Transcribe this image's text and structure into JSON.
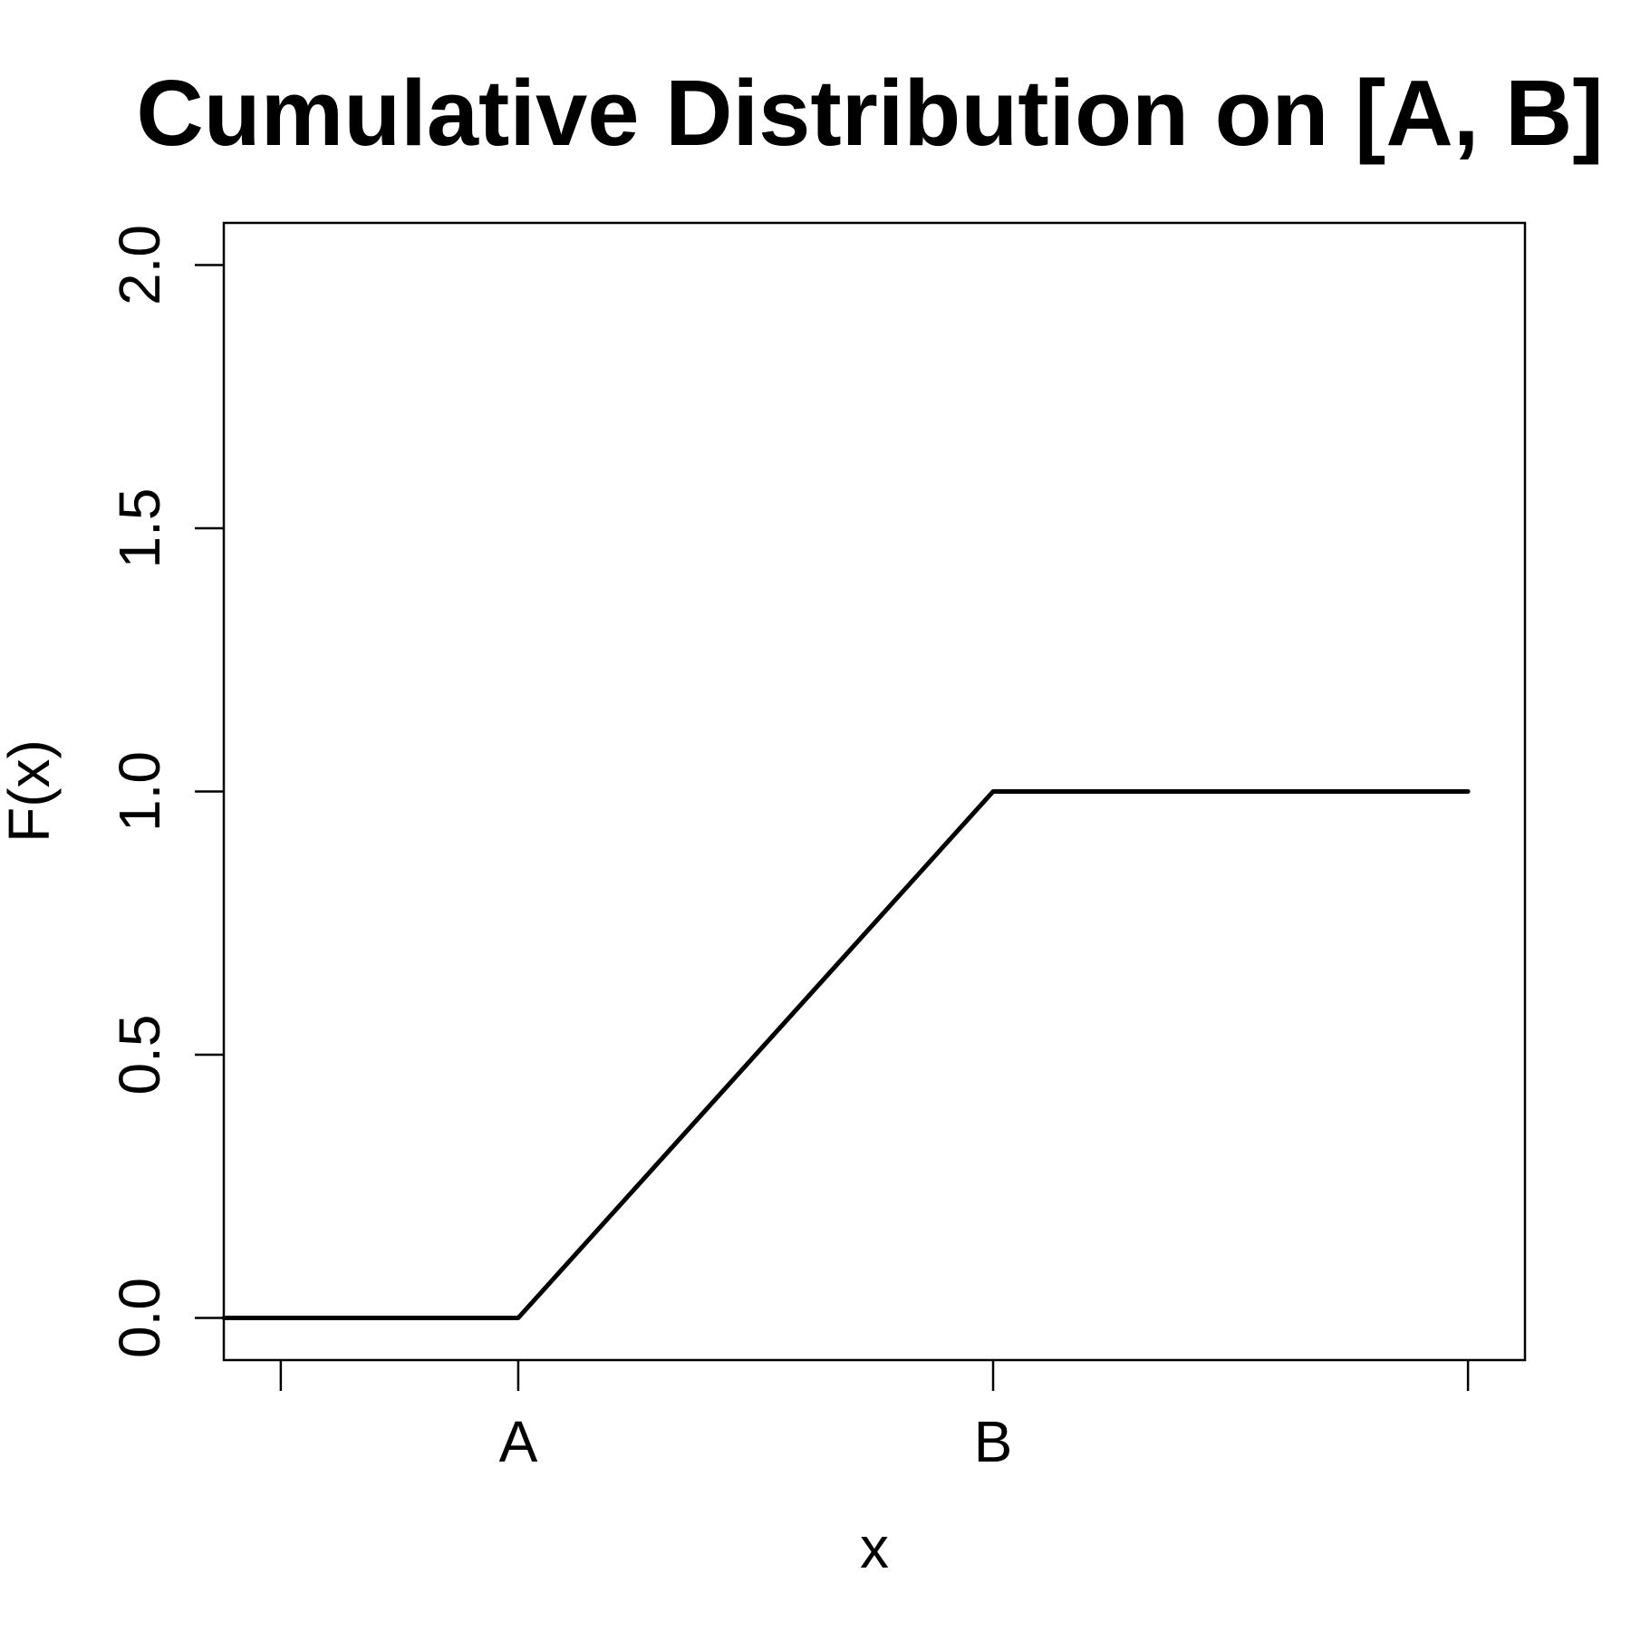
{
  "chart_data": {
    "type": "line",
    "title": "Cumulative Distribution on [A, B]",
    "xlabel": "x",
    "ylabel": "F(x)",
    "x_ticks": [
      {
        "value": -0.5,
        "label": ""
      },
      {
        "value": 0,
        "label": "A"
      },
      {
        "value": 1,
        "label": "B"
      },
      {
        "value": 2,
        "label": ""
      }
    ],
    "y_ticks": [
      {
        "value": 0.0,
        "label": "0.0"
      },
      {
        "value": 0.5,
        "label": "0.5"
      },
      {
        "value": 1.0,
        "label": "1.0"
      },
      {
        "value": 1.5,
        "label": "1.5"
      },
      {
        "value": 2.0,
        "label": "2.0"
      }
    ],
    "xlim": [
      -0.62,
      2.12
    ],
    "ylim": [
      -0.08,
      2.08
    ],
    "series": [
      {
        "x": [
          -0.62,
          0,
          1,
          2
        ],
        "y": [
          0,
          0,
          1,
          1
        ]
      }
    ],
    "grid": false,
    "legend": "none"
  }
}
